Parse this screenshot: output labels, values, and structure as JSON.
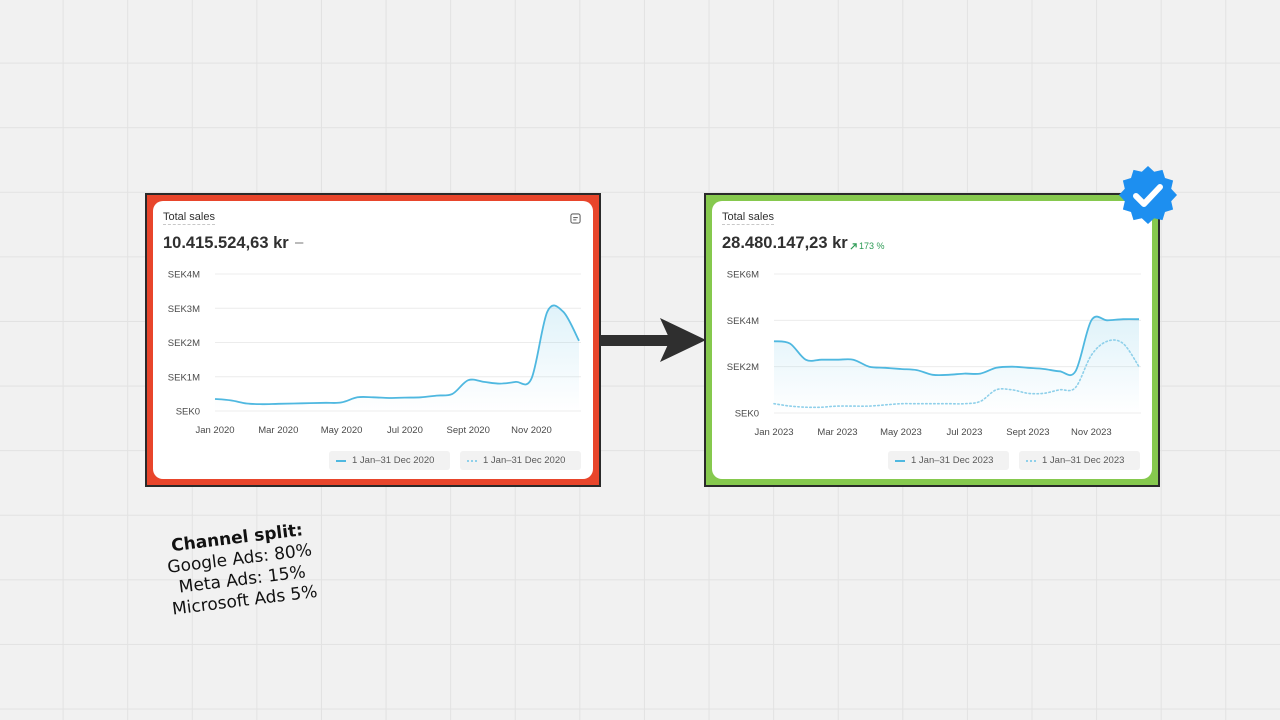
{
  "colors": {
    "before_frame": "#e8452b",
    "after_frame": "#86c94e",
    "line_current": "#4fb8e0",
    "line_previous": "#8fd0ea",
    "growth": "#2e9b55",
    "verified_badge": "#1d8ff0"
  },
  "icons": {
    "card_corner": "report-icon",
    "verified": "verified-check-icon",
    "transition": "right-arrow-icon"
  },
  "before": {
    "title": "Total sales",
    "total": "10.415.524,63 kr",
    "change": "–",
    "legend_current": "1 Jan–31 Dec 2020",
    "legend_previous": "1 Jan–31 Dec 2020"
  },
  "after": {
    "title": "Total sales",
    "total": "28.480.147,23 kr",
    "change": "173 %",
    "legend_current": "1 Jan–31 Dec 2023",
    "legend_previous": "1 Jan–31 Dec 2023"
  },
  "note": {
    "title": "Channel split:",
    "lines": [
      "Google Ads: 80%",
      "Meta Ads: 15%",
      "Microsoft Ads 5%"
    ]
  },
  "chart_data": [
    {
      "type": "area",
      "title": "Total sales",
      "x_labels": [
        "Jan 2020",
        "Mar 2020",
        "May 2020",
        "Jul 2020",
        "Sept 2020",
        "Nov 2020"
      ],
      "y_ticks": [
        "SEK0",
        "SEK1M",
        "SEK2M",
        "SEK3M",
        "SEK4M"
      ],
      "ylim": [
        0,
        4000000
      ],
      "grid": true,
      "legend_position": "bottom-right",
      "series": [
        {
          "name": "1 Jan–31 Dec 2020",
          "style": "solid",
          "x": [
            0,
            0.5,
            1,
            1.5,
            2,
            2.5,
            3,
            3.5,
            4,
            4.5,
            5,
            5.5,
            6,
            6.5,
            7,
            7.5,
            8,
            8.5,
            9,
            9.5,
            10,
            10.5,
            11,
            11.5
          ],
          "values": [
            350000,
            310000,
            220000,
            200000,
            210000,
            220000,
            230000,
            240000,
            250000,
            400000,
            400000,
            380000,
            390000,
            400000,
            450000,
            500000,
            900000,
            850000,
            800000,
            850000,
            950000,
            2900000,
            2900000,
            2050000
          ]
        }
      ]
    },
    {
      "type": "area",
      "title": "Total sales",
      "x_labels": [
        "Jan 2023",
        "Mar 2023",
        "May 2023",
        "Jul 2023",
        "Sept 2023",
        "Nov 2023"
      ],
      "y_ticks": [
        "SEK0",
        "SEK2M",
        "SEK4M",
        "SEK6M"
      ],
      "ylim": [
        0,
        6000000
      ],
      "grid": true,
      "legend_position": "bottom-right",
      "series": [
        {
          "name": "1 Jan–31 Dec 2023",
          "style": "solid",
          "x": [
            0,
            0.5,
            1,
            1.5,
            2,
            2.5,
            3,
            3.5,
            4,
            4.5,
            5,
            5.5,
            6,
            6.5,
            7,
            7.5,
            8,
            8.5,
            9,
            9.5,
            10,
            10.5,
            11,
            11.5
          ],
          "values": [
            3100000,
            3000000,
            2300000,
            2300000,
            2300000,
            2300000,
            2000000,
            1950000,
            1900000,
            1850000,
            1650000,
            1650000,
            1700000,
            1700000,
            1950000,
            2000000,
            1950000,
            1900000,
            1800000,
            1800000,
            4000000,
            4000000,
            4050000,
            4050000
          ]
        },
        {
          "name": "1 Jan–31 Dec 2023",
          "style": "dotted",
          "x": [
            0,
            0.5,
            1,
            1.5,
            2,
            2.5,
            3,
            3.5,
            4,
            4.5,
            5,
            5.5,
            6,
            6.5,
            7,
            7.5,
            8,
            8.5,
            9,
            9.5,
            10,
            10.5,
            11,
            11.5
          ],
          "values": [
            400000,
            300000,
            250000,
            250000,
            300000,
            300000,
            300000,
            350000,
            400000,
            400000,
            400000,
            400000,
            400000,
            500000,
            1000000,
            1000000,
            850000,
            850000,
            1000000,
            1100000,
            2500000,
            3100000,
            3000000,
            2000000
          ]
        }
      ]
    }
  ]
}
